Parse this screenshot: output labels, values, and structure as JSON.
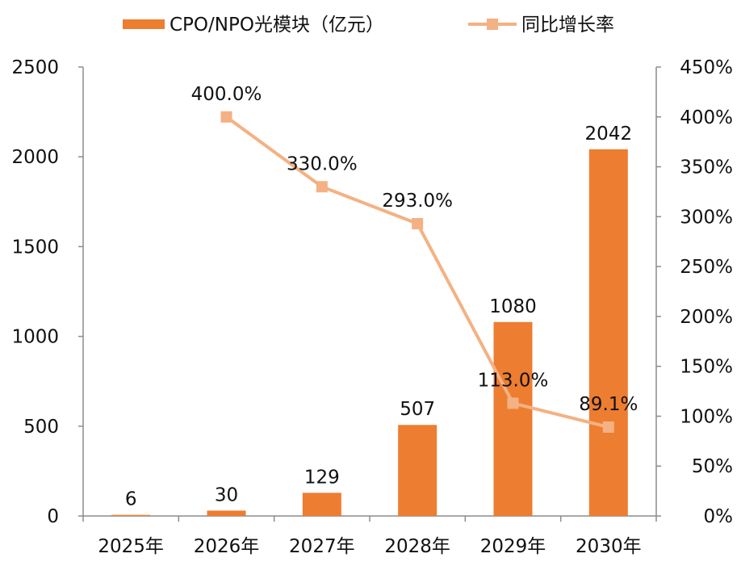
{
  "chart_data": {
    "type": "bar",
    "categories": [
      "2025年",
      "2026年",
      "2027年",
      "2028年",
      "2029年",
      "2030年"
    ],
    "series": [
      {
        "name": "CPO/NPO光模块（亿元）",
        "type": "bar",
        "axis": "left",
        "color": "#ed7d31",
        "values": [
          6,
          30,
          129,
          507,
          1080,
          2042
        ],
        "labels": [
          "6",
          "30",
          "129",
          "507",
          "1080",
          "2042"
        ]
      },
      {
        "name": "同比增长率",
        "type": "line",
        "axis": "right",
        "color": "#f4b183",
        "values": [
          null,
          400.0,
          330.0,
          293.0,
          113.0,
          89.1
        ],
        "labels": [
          "",
          "400.0%",
          "330.0%",
          "293.0%",
          "113.0%",
          "89.1%"
        ]
      }
    ],
    "ylim": [
      0,
      2500
    ],
    "yticks": [
      "0",
      "500",
      "1000",
      "1500",
      "2000",
      "2500"
    ],
    "y2lim": [
      0,
      450
    ],
    "y2ticks": [
      "0%",
      "50%",
      "100%",
      "150%",
      "200%",
      "250%",
      "300%",
      "350%",
      "400%",
      "450%"
    ],
    "legend": "top",
    "grid": false
  }
}
